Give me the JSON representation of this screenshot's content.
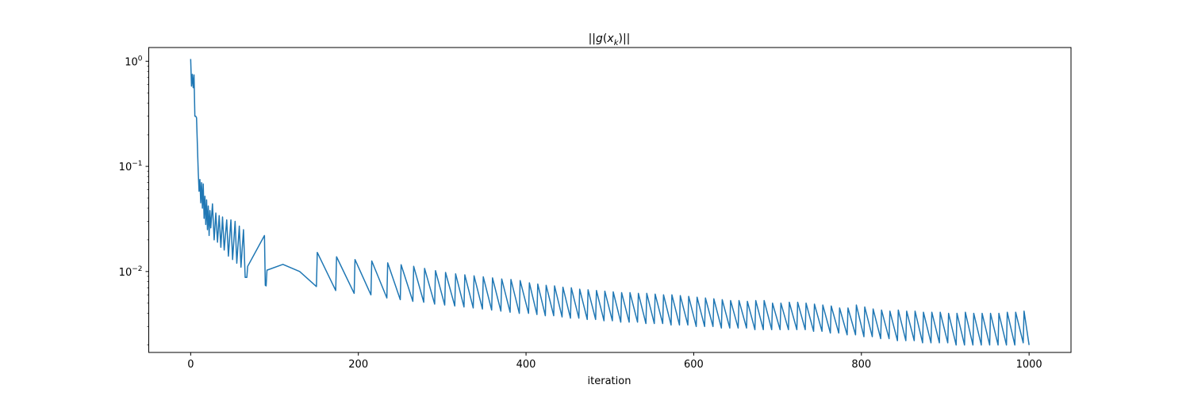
{
  "chart_data": {
    "type": "line",
    "title_parts": [
      "||",
      "g",
      "(",
      "x",
      "k",
      ")||"
    ],
    "xlabel": "iteration",
    "ylabel": "",
    "yscale": "log",
    "xlim": [
      -50,
      1050
    ],
    "ylim": [
      0.0017,
      1.35
    ],
    "x_ticks": [
      0,
      200,
      400,
      600,
      800,
      1000
    ],
    "x_tick_labels": [
      "0",
      "200",
      "400",
      "600",
      "800",
      "1000"
    ],
    "y_ticks": [
      {
        "value": 1,
        "base": "10",
        "exp": "0"
      },
      {
        "value": 0.1,
        "base": "10",
        "exp": "−1"
      },
      {
        "value": 0.01,
        "base": "10",
        "exp": "−2"
      }
    ],
    "grid": false,
    "series": [
      {
        "color": "#1f77b4",
        "points": [
          [
            0,
            1.05
          ],
          [
            1,
            0.58
          ],
          [
            2,
            0.75
          ],
          [
            3,
            0.56
          ],
          [
            4,
            0.74
          ],
          [
            5,
            0.3
          ],
          [
            6,
            0.3
          ],
          [
            7,
            0.29
          ],
          [
            8,
            0.16
          ],
          [
            9,
            0.09
          ],
          [
            10,
            0.058
          ],
          [
            11,
            0.075
          ],
          [
            12,
            0.045
          ],
          [
            13,
            0.07
          ],
          [
            14,
            0.04
          ],
          [
            15,
            0.068
          ],
          [
            16,
            0.032
          ],
          [
            17,
            0.052
          ],
          [
            18,
            0.028
          ],
          [
            19,
            0.048
          ],
          [
            20,
            0.025
          ],
          [
            21,
            0.042
          ],
          [
            22,
            0.022
          ],
          [
            23,
            0.038
          ],
          [
            24,
            0.026
          ],
          [
            26,
            0.044
          ],
          [
            28,
            0.02
          ],
          [
            30,
            0.036
          ],
          [
            32,
            0.019
          ],
          [
            34,
            0.034
          ],
          [
            36,
            0.017
          ],
          [
            38,
            0.033
          ],
          [
            40,
            0.016
          ],
          [
            43,
            0.031
          ],
          [
            45,
            0.014
          ],
          [
            48,
            0.031
          ],
          [
            50,
            0.013
          ],
          [
            53,
            0.03
          ],
          [
            55,
            0.012
          ],
          [
            58,
            0.027
          ],
          [
            60,
            0.011
          ],
          [
            63,
            0.025
          ],
          [
            65,
            0.0088
          ],
          [
            67,
            0.0088
          ],
          [
            68,
            0.0112
          ],
          [
            88,
            0.022
          ],
          [
            89,
            0.0074
          ],
          [
            90,
            0.0073
          ],
          [
            91,
            0.0103
          ],
          [
            110,
            0.0117
          ],
          [
            130,
            0.01
          ],
          [
            150,
            0.0072
          ],
          [
            151,
            0.0152
          ],
          [
            173,
            0.0066
          ],
          [
            174,
            0.0138
          ],
          [
            195,
            0.0062
          ],
          [
            196,
            0.013
          ],
          [
            215,
            0.006
          ],
          [
            216,
            0.0126
          ],
          [
            234,
            0.0056
          ],
          [
            235,
            0.0121
          ],
          [
            250,
            0.0054
          ],
          [
            251,
            0.0116
          ],
          [
            265,
            0.0052
          ],
          [
            266,
            0.0112
          ],
          [
            278,
            0.0051
          ],
          [
            279,
            0.0107
          ],
          [
            291,
            0.0049
          ],
          [
            292,
            0.0102
          ],
          [
            303,
            0.0048
          ],
          [
            304,
            0.0098
          ],
          [
            315,
            0.0047
          ],
          [
            316,
            0.0095
          ],
          [
            326,
            0.0046
          ],
          [
            327,
            0.0093
          ],
          [
            337,
            0.0045
          ],
          [
            338,
            0.0091
          ],
          [
            348,
            0.0044
          ],
          [
            349,
            0.0089
          ],
          [
            359,
            0.0043
          ],
          [
            360,
            0.0087
          ],
          [
            370,
            0.0042
          ],
          [
            371,
            0.0085
          ],
          [
            381,
            0.0041
          ],
          [
            382,
            0.0084
          ],
          [
            392,
            0.004
          ],
          [
            393,
            0.0082
          ],
          [
            403,
            0.004
          ],
          [
            404,
            0.0078
          ],
          [
            413,
            0.0039
          ],
          [
            414,
            0.0076
          ],
          [
            423,
            0.0038
          ],
          [
            424,
            0.0074
          ],
          [
            433,
            0.0038
          ],
          [
            434,
            0.0073
          ],
          [
            443,
            0.0037
          ],
          [
            444,
            0.0071
          ],
          [
            453,
            0.0036
          ],
          [
            454,
            0.007
          ],
          [
            463,
            0.0036
          ],
          [
            464,
            0.0068
          ],
          [
            473,
            0.0035
          ],
          [
            474,
            0.0067
          ],
          [
            483,
            0.0035
          ],
          [
            484,
            0.0066
          ],
          [
            493,
            0.0034
          ],
          [
            494,
            0.0065
          ],
          [
            503,
            0.0034
          ],
          [
            504,
            0.0064
          ],
          [
            513,
            0.0033
          ],
          [
            514,
            0.0063
          ],
          [
            523,
            0.0033
          ],
          [
            524,
            0.0063
          ],
          [
            533,
            0.0033
          ],
          [
            534,
            0.0062
          ],
          [
            543,
            0.0032
          ],
          [
            544,
            0.0062
          ],
          [
            553,
            0.0032
          ],
          [
            554,
            0.0061
          ],
          [
            563,
            0.0032
          ],
          [
            564,
            0.006
          ],
          [
            573,
            0.0031
          ],
          [
            574,
            0.006
          ],
          [
            583,
            0.0031
          ],
          [
            584,
            0.0059
          ],
          [
            593,
            0.0031
          ],
          [
            594,
            0.0058
          ],
          [
            603,
            0.003
          ],
          [
            604,
            0.0057
          ],
          [
            613,
            0.003
          ],
          [
            614,
            0.0056
          ],
          [
            623,
            0.003
          ],
          [
            624,
            0.0055
          ],
          [
            633,
            0.0029
          ],
          [
            634,
            0.0054
          ],
          [
            643,
            0.0029
          ],
          [
            644,
            0.0053
          ],
          [
            653,
            0.0029
          ],
          [
            654,
            0.0053
          ],
          [
            663,
            0.0029
          ],
          [
            664,
            0.0052
          ],
          [
            673,
            0.0028
          ],
          [
            674,
            0.0053
          ],
          [
            683,
            0.0028
          ],
          [
            684,
            0.0053
          ],
          [
            693,
            0.0028
          ],
          [
            694,
            0.005
          ],
          [
            703,
            0.0028
          ],
          [
            704,
            0.005
          ],
          [
            713,
            0.0028
          ],
          [
            714,
            0.0051
          ],
          [
            723,
            0.0028
          ],
          [
            724,
            0.0051
          ],
          [
            733,
            0.0028
          ],
          [
            734,
            0.005
          ],
          [
            743,
            0.0027
          ],
          [
            744,
            0.0049
          ],
          [
            753,
            0.0027
          ],
          [
            754,
            0.0048
          ],
          [
            763,
            0.0026
          ],
          [
            764,
            0.0047
          ],
          [
            773,
            0.0026
          ],
          [
            774,
            0.0045
          ],
          [
            783,
            0.0025
          ],
          [
            784,
            0.0045
          ],
          [
            793,
            0.0025
          ],
          [
            794,
            0.0048
          ],
          [
            803,
            0.0024
          ],
          [
            804,
            0.0046
          ],
          [
            813,
            0.0024
          ],
          [
            814,
            0.0044
          ],
          [
            823,
            0.0023
          ],
          [
            824,
            0.0043
          ],
          [
            833,
            0.0023
          ],
          [
            834,
            0.0042
          ],
          [
            843,
            0.0022
          ],
          [
            844,
            0.0043
          ],
          [
            853,
            0.0022
          ],
          [
            854,
            0.0042
          ],
          [
            863,
            0.0022
          ],
          [
            864,
            0.0042
          ],
          [
            873,
            0.0021
          ],
          [
            874,
            0.0041
          ],
          [
            883,
            0.0021
          ],
          [
            884,
            0.0041
          ],
          [
            893,
            0.0021
          ],
          [
            894,
            0.0041
          ],
          [
            903,
            0.0021
          ],
          [
            904,
            0.004
          ],
          [
            913,
            0.002
          ],
          [
            914,
            0.004
          ],
          [
            923,
            0.002
          ],
          [
            924,
            0.0041
          ],
          [
            933,
            0.002
          ],
          [
            934,
            0.004
          ],
          [
            943,
            0.002
          ],
          [
            944,
            0.004
          ],
          [
            953,
            0.002
          ],
          [
            954,
            0.004
          ],
          [
            963,
            0.002
          ],
          [
            964,
            0.004
          ],
          [
            973,
            0.002
          ],
          [
            974,
            0.0041
          ],
          [
            983,
            0.002
          ],
          [
            984,
            0.0041
          ],
          [
            993,
            0.0021
          ],
          [
            994,
            0.0042
          ],
          [
            1000,
            0.002
          ]
        ]
      }
    ]
  }
}
